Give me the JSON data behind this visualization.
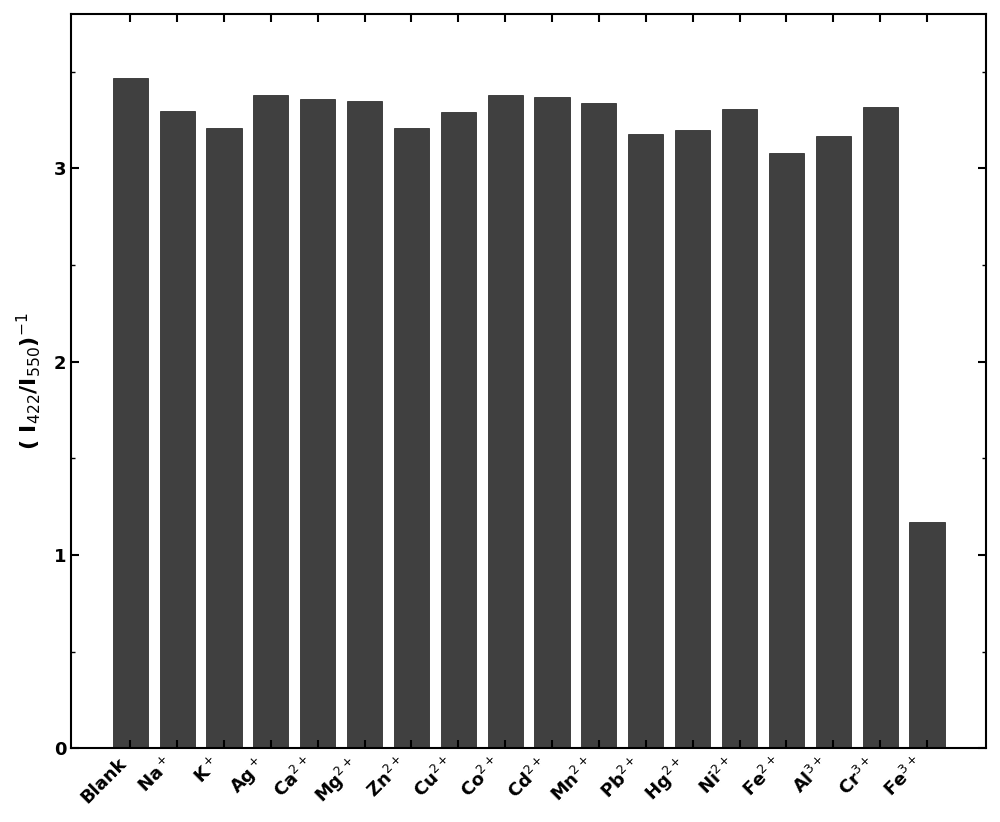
{
  "categories": [
    "Blank",
    "Na$^+$",
    "K$^+$",
    "Ag$^+$",
    "Ca$^{2+}$",
    "Mg$^{2+}$",
    "Zn$^{2+}$",
    "Cu$^{2+}$",
    "Co$^{2+}$",
    "Cd$^{2+}$",
    "Mn$^{2+}$",
    "Pb$^{2+}$",
    "Hg$^{2+}$",
    "Ni$^{2+}$",
    "Fe$^{2+}$",
    "Al$^{3+}$",
    "Cr$^{3+}$",
    "Fe$^{3+}$"
  ],
  "values": [
    3.47,
    3.3,
    3.21,
    3.38,
    3.36,
    3.35,
    3.21,
    3.29,
    3.38,
    3.37,
    3.34,
    3.18,
    3.2,
    3.31,
    3.08,
    3.17,
    3.32,
    1.17
  ],
  "bar_color": "#404040",
  "ylabel": "( I$_{422}$/I$_{550}$)$^{-1}$",
  "ylim": [
    0,
    3.8
  ],
  "yticks": [
    0,
    1,
    2,
    3
  ],
  "background_color": "#ffffff",
  "bar_edgecolor": "#1a1a1a",
  "figsize": [
    10.0,
    8.22
  ],
  "dpi": 100
}
